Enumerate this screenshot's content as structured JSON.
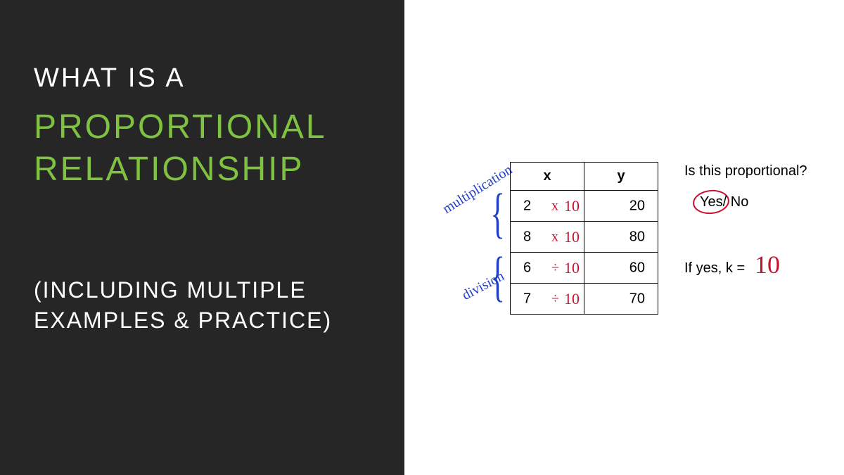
{
  "left": {
    "line1": "WHAT IS A",
    "line2": "PROPORTIONAL",
    "line3": "RELATIONSHIP",
    "subtitle1": "(INCLUDING MULTIPLE",
    "subtitle2": "EXAMPLES & PRACTICE)",
    "bg_color": "#262626",
    "text_color": "#ffffff",
    "accent_color": "#7fc241"
  },
  "table": {
    "headers": {
      "x": "x",
      "y": "y"
    },
    "rows": [
      {
        "x": "2",
        "op": "x",
        "k": "10",
        "y": "20"
      },
      {
        "x": "8",
        "op": "x",
        "k": "10",
        "y": "80"
      },
      {
        "x": "6",
        "op": "÷",
        "k": "10",
        "y": "60"
      },
      {
        "x": "7",
        "op": "÷",
        "k": "10",
        "y": "70"
      }
    ],
    "side_labels": {
      "mult": "multiplication",
      "div": "division"
    },
    "annotation_color": "#c8102e",
    "side_label_color": "#2040c8"
  },
  "question": {
    "prompt": "Is this proportional?",
    "yes": "Yes",
    "sep": "/",
    "no": "No",
    "answer_circled": "yes",
    "k_label": "If yes, k =",
    "k_value": "10"
  }
}
